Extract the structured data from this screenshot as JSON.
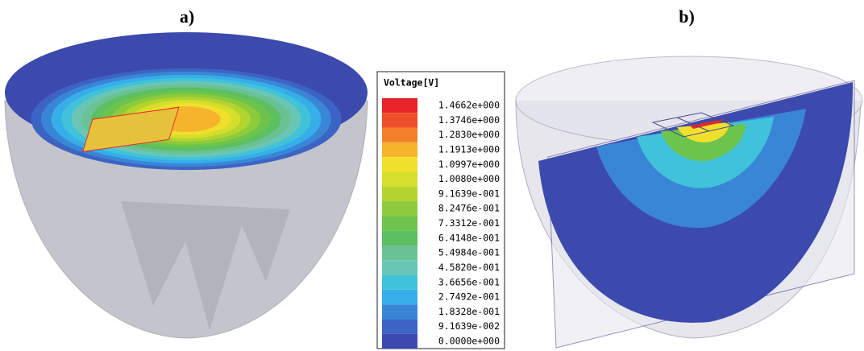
{
  "panels": [
    {
      "label": "a)"
    },
    {
      "label": "b)"
    }
  ],
  "legend": {
    "title": "Voltage[V]",
    "entries": [
      {
        "label": "1.4662e+000",
        "color": "#e8262a"
      },
      {
        "label": "1.3746e+000",
        "color": "#ee4f2a"
      },
      {
        "label": "1.2830e+000",
        "color": "#f2802a"
      },
      {
        "label": "1.1913e+000",
        "color": "#f5b42c"
      },
      {
        "label": "1.0997e+000",
        "color": "#f0e02c"
      },
      {
        "label": "1.0080e+000",
        "color": "#d6de2c"
      },
      {
        "label": "9.1639e-001",
        "color": "#b3d42e"
      },
      {
        "label": "8.2476e-001",
        "color": "#8ccb3c"
      },
      {
        "label": "7.3312e-001",
        "color": "#6cc44c"
      },
      {
        "label": "6.4148e-001",
        "color": "#5cbf62"
      },
      {
        "label": "5.4984e-001",
        "color": "#6ac294"
      },
      {
        "label": "4.5820e-001",
        "color": "#6ac6b4"
      },
      {
        "label": "3.6656e-001",
        "color": "#40c2da"
      },
      {
        "label": "2.7492e-001",
        "color": "#36aeea"
      },
      {
        "label": "1.8328e-001",
        "color": "#3a86d6"
      },
      {
        "label": "9.1639e-002",
        "color": "#3c64c4"
      },
      {
        "label": "0.0000e+000",
        "color": "#3c4aae"
      }
    ]
  }
}
